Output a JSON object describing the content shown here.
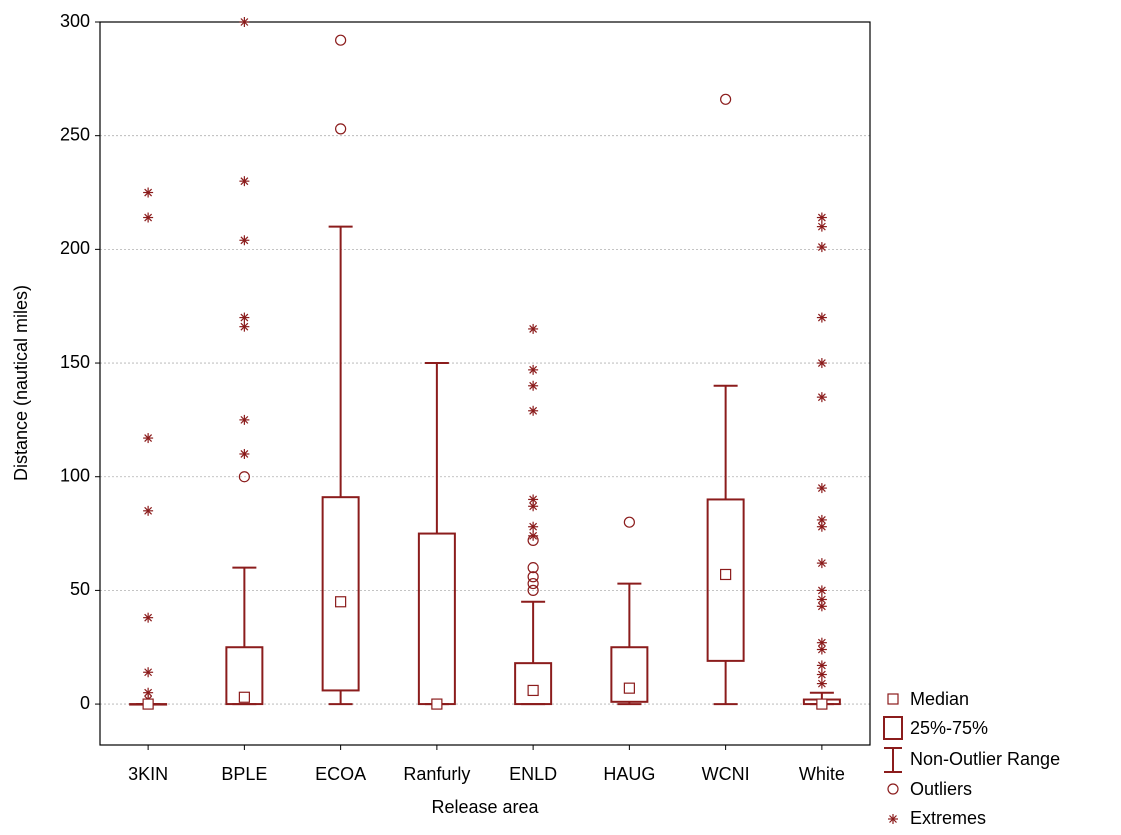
{
  "chart_data": {
    "type": "box",
    "x_label": "Release area",
    "y_label": "Distance (nautical miles)",
    "color": "#8b1c1c",
    "categories": [
      "3KIN",
      "BPLE",
      "ECOA",
      "Ranfurly",
      "ENLD",
      "HAUG",
      "WCNI",
      "White"
    ],
    "boxes": [
      {
        "median": 0,
        "q1": 0,
        "q3": 0,
        "min": 0,
        "max": 0,
        "outliers": [],
        "extremes": [
          225,
          214,
          117,
          85,
          38,
          14,
          5,
          2
        ]
      },
      {
        "median": 3,
        "q1": 0,
        "q3": 25,
        "min": 0,
        "max": 60,
        "outliers": [
          100
        ],
        "extremes": [
          300,
          230,
          204,
          170,
          166,
          125,
          110
        ]
      },
      {
        "median": 45,
        "q1": 6,
        "q3": 91,
        "min": 0,
        "max": 210,
        "outliers": [
          292,
          253
        ],
        "extremes": []
      },
      {
        "median": 0,
        "q1": 0,
        "q3": 75,
        "min": 0,
        "max": 150,
        "outliers": [],
        "extremes": []
      },
      {
        "median": 6,
        "q1": 0,
        "q3": 18,
        "min": 0,
        "max": 45,
        "outliers": [
          72,
          60,
          56,
          53,
          50
        ],
        "extremes": [
          165,
          147,
          140,
          129,
          90,
          87,
          78,
          74
        ]
      },
      {
        "median": 7,
        "q1": 1,
        "q3": 25,
        "min": 0,
        "max": 53,
        "outliers": [
          80
        ],
        "extremes": []
      },
      {
        "median": 57,
        "q1": 19,
        "q3": 90,
        "min": 0,
        "max": 140,
        "outliers": [
          266
        ],
        "extremes": []
      },
      {
        "median": 0,
        "q1": 0,
        "q3": 2,
        "min": 0,
        "max": 5,
        "outliers": [],
        "extremes": [
          214,
          210,
          201,
          170,
          150,
          135,
          95,
          81,
          78,
          62,
          50,
          46,
          43,
          27,
          24,
          17,
          13,
          9
        ]
      }
    ],
    "ylim": [
      -18,
      300
    ],
    "yticks": [
      0,
      50,
      100,
      150,
      200,
      250,
      300
    ],
    "grid": true,
    "legend": {
      "median": "Median",
      "box": "25%-75%",
      "range": "Non-Outlier Range",
      "outliers": "Outliers",
      "extremes": "Extremes"
    }
  }
}
